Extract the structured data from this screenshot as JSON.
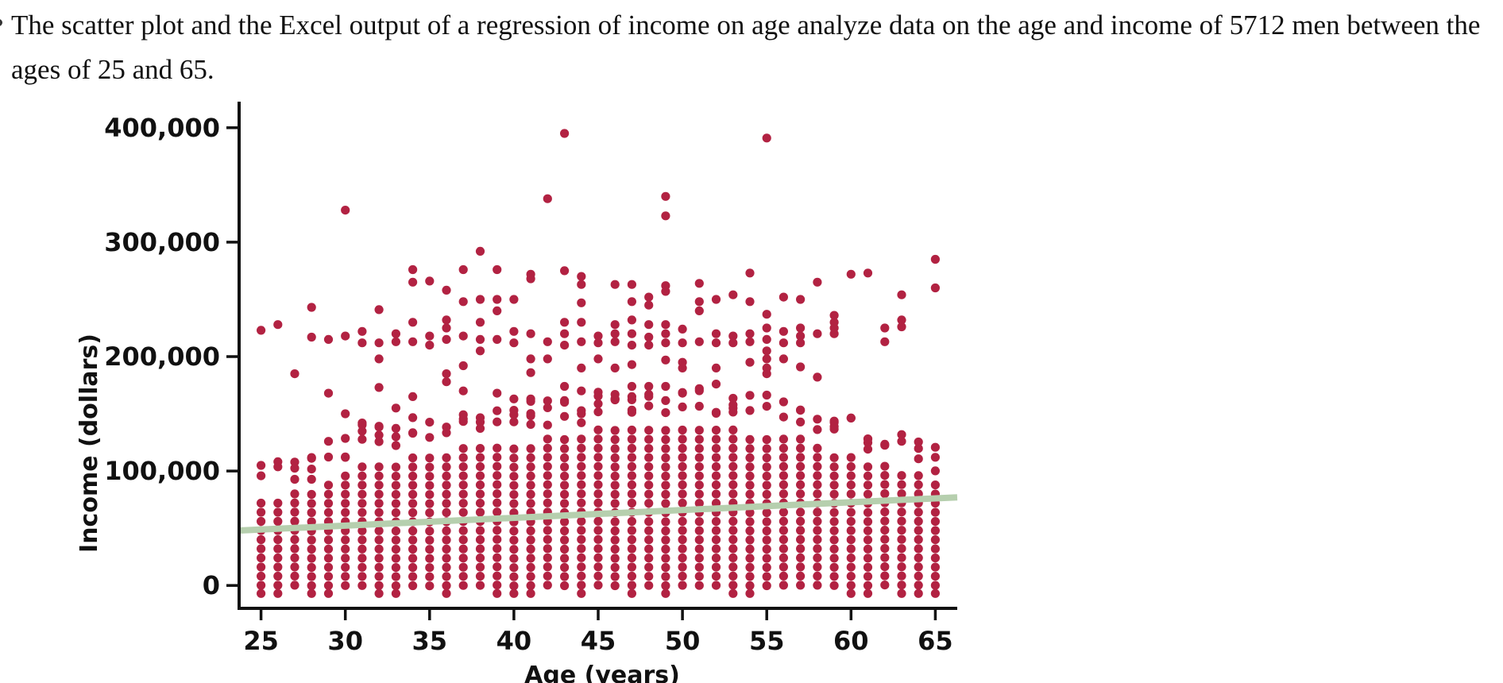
{
  "question": {
    "text": "The scatter plot and the Excel output of a regression of income on age analyze data on the age and income of 5712 men between the ages of 25 and 65."
  },
  "colors": {
    "points": "#b22242",
    "regression_line": "#b6cfae",
    "axes": "#111111"
  },
  "chart_data": {
    "type": "scatter",
    "title": "",
    "xlabel": "Age (years)",
    "ylabel": "Income (dollars)",
    "xlim": [
      23.7,
      66.3
    ],
    "ylim": [
      -20000,
      420000
    ],
    "x_ticks": [
      25,
      30,
      35,
      40,
      45,
      50,
      55,
      60,
      65
    ],
    "y_ticks": [
      0,
      100000,
      200000,
      300000,
      400000
    ],
    "x_tick_labels": [
      "25",
      "30",
      "35",
      "40",
      "45",
      "50",
      "55",
      "60",
      "65"
    ],
    "y_tick_labels": [
      "0",
      "100,000",
      "200,000",
      "300,000",
      "400,000"
    ],
    "grid": false,
    "legend": "none",
    "dense_band": {
      "description_ages": "every integer age 25-65",
      "upper_by_age": [
        72000,
        78000,
        80000,
        82000,
        95000,
        100000,
        108000,
        110000,
        112000,
        115000,
        118000,
        120000,
        120000,
        122000,
        122000,
        125000,
        128000,
        130000,
        132000,
        134000,
        136000,
        138000,
        140000,
        140000,
        140000,
        140000,
        140000,
        140000,
        138000,
        136000,
        134000,
        132000,
        128000,
        125000,
        120000,
        115000,
        110000,
        105000,
        100000,
        95000,
        90000
      ]
    },
    "outliers": [
      {
        "x": 25,
        "y": 223000
      },
      {
        "x": 26,
        "y": 228000
      },
      {
        "x": 27,
        "y": 185000
      },
      {
        "x": 28,
        "y": 243000
      },
      {
        "x": 28,
        "y": 217000
      },
      {
        "x": 29,
        "y": 168000
      },
      {
        "x": 29,
        "y": 215000
      },
      {
        "x": 30,
        "y": 328000
      },
      {
        "x": 30,
        "y": 218000
      },
      {
        "x": 30,
        "y": 150000
      },
      {
        "x": 31,
        "y": 222000
      },
      {
        "x": 31,
        "y": 212000
      },
      {
        "x": 31,
        "y": 142000
      },
      {
        "x": 32,
        "y": 241000
      },
      {
        "x": 32,
        "y": 212000
      },
      {
        "x": 32,
        "y": 198000
      },
      {
        "x": 32,
        "y": 173000
      },
      {
        "x": 33,
        "y": 220000
      },
      {
        "x": 33,
        "y": 213000
      },
      {
        "x": 33,
        "y": 155000
      },
      {
        "x": 34,
        "y": 276000
      },
      {
        "x": 34,
        "y": 265000
      },
      {
        "x": 34,
        "y": 230000
      },
      {
        "x": 34,
        "y": 213000
      },
      {
        "x": 34,
        "y": 165000
      },
      {
        "x": 35,
        "y": 266000
      },
      {
        "x": 35,
        "y": 218000
      },
      {
        "x": 35,
        "y": 210000
      },
      {
        "x": 36,
        "y": 258000
      },
      {
        "x": 36,
        "y": 232000
      },
      {
        "x": 36,
        "y": 225000
      },
      {
        "x": 36,
        "y": 215000
      },
      {
        "x": 36,
        "y": 185000
      },
      {
        "x": 36,
        "y": 178000
      },
      {
        "x": 37,
        "y": 276000
      },
      {
        "x": 37,
        "y": 248000
      },
      {
        "x": 37,
        "y": 218000
      },
      {
        "x": 37,
        "y": 192000
      },
      {
        "x": 37,
        "y": 170000
      },
      {
        "x": 38,
        "y": 292000
      },
      {
        "x": 38,
        "y": 250000
      },
      {
        "x": 38,
        "y": 230000
      },
      {
        "x": 38,
        "y": 215000
      },
      {
        "x": 38,
        "y": 205000
      },
      {
        "x": 39,
        "y": 276000
      },
      {
        "x": 39,
        "y": 250000
      },
      {
        "x": 39,
        "y": 240000
      },
      {
        "x": 39,
        "y": 215000
      },
      {
        "x": 39,
        "y": 168000
      },
      {
        "x": 40,
        "y": 250000
      },
      {
        "x": 40,
        "y": 222000
      },
      {
        "x": 40,
        "y": 212000
      },
      {
        "x": 40,
        "y": 163000
      },
      {
        "x": 41,
        "y": 272000
      },
      {
        "x": 41,
        "y": 268000
      },
      {
        "x": 41,
        "y": 220000
      },
      {
        "x": 41,
        "y": 198000
      },
      {
        "x": 41,
        "y": 186000
      },
      {
        "x": 41,
        "y": 163000
      },
      {
        "x": 42,
        "y": 338000
      },
      {
        "x": 42,
        "y": 213000
      },
      {
        "x": 42,
        "y": 198000
      },
      {
        "x": 43,
        "y": 395000
      },
      {
        "x": 43,
        "y": 275000
      },
      {
        "x": 43,
        "y": 230000
      },
      {
        "x": 43,
        "y": 220000
      },
      {
        "x": 43,
        "y": 210000
      },
      {
        "x": 43,
        "y": 174000
      },
      {
        "x": 44,
        "y": 270000
      },
      {
        "x": 44,
        "y": 263000
      },
      {
        "x": 44,
        "y": 247000
      },
      {
        "x": 44,
        "y": 230000
      },
      {
        "x": 44,
        "y": 213000
      },
      {
        "x": 44,
        "y": 190000
      },
      {
        "x": 44,
        "y": 170000
      },
      {
        "x": 45,
        "y": 218000
      },
      {
        "x": 45,
        "y": 212000
      },
      {
        "x": 45,
        "y": 198000
      },
      {
        "x": 46,
        "y": 263000
      },
      {
        "x": 46,
        "y": 228000
      },
      {
        "x": 46,
        "y": 220000
      },
      {
        "x": 46,
        "y": 213000
      },
      {
        "x": 46,
        "y": 190000
      },
      {
        "x": 46,
        "y": 167000
      },
      {
        "x": 47,
        "y": 263000
      },
      {
        "x": 47,
        "y": 248000
      },
      {
        "x": 47,
        "y": 232000
      },
      {
        "x": 47,
        "y": 220000
      },
      {
        "x": 47,
        "y": 210000
      },
      {
        "x": 47,
        "y": 193000
      },
      {
        "x": 47,
        "y": 174000
      },
      {
        "x": 48,
        "y": 252000
      },
      {
        "x": 48,
        "y": 245000
      },
      {
        "x": 48,
        "y": 228000
      },
      {
        "x": 48,
        "y": 217000
      },
      {
        "x": 48,
        "y": 210000
      },
      {
        "x": 48,
        "y": 174000
      },
      {
        "x": 48,
        "y": 167000
      },
      {
        "x": 49,
        "y": 340000
      },
      {
        "x": 49,
        "y": 323000
      },
      {
        "x": 49,
        "y": 262000
      },
      {
        "x": 49,
        "y": 257000
      },
      {
        "x": 49,
        "y": 228000
      },
      {
        "x": 49,
        "y": 220000
      },
      {
        "x": 49,
        "y": 212000
      },
      {
        "x": 49,
        "y": 197000
      },
      {
        "x": 49,
        "y": 174000
      },
      {
        "x": 50,
        "y": 224000
      },
      {
        "x": 50,
        "y": 212000
      },
      {
        "x": 50,
        "y": 195000
      },
      {
        "x": 50,
        "y": 190000
      },
      {
        "x": 51,
        "y": 264000
      },
      {
        "x": 51,
        "y": 248000
      },
      {
        "x": 51,
        "y": 240000
      },
      {
        "x": 51,
        "y": 213000
      },
      {
        "x": 51,
        "y": 172000
      },
      {
        "x": 52,
        "y": 250000
      },
      {
        "x": 52,
        "y": 220000
      },
      {
        "x": 52,
        "y": 212000
      },
      {
        "x": 52,
        "y": 190000
      },
      {
        "x": 52,
        "y": 176000
      },
      {
        "x": 53,
        "y": 254000
      },
      {
        "x": 53,
        "y": 218000
      },
      {
        "x": 53,
        "y": 212000
      },
      {
        "x": 54,
        "y": 273000
      },
      {
        "x": 54,
        "y": 248000
      },
      {
        "x": 54,
        "y": 220000
      },
      {
        "x": 54,
        "y": 213000
      },
      {
        "x": 54,
        "y": 195000
      },
      {
        "x": 55,
        "y": 391000
      },
      {
        "x": 55,
        "y": 237000
      },
      {
        "x": 55,
        "y": 225000
      },
      {
        "x": 55,
        "y": 215000
      },
      {
        "x": 55,
        "y": 205000
      },
      {
        "x": 55,
        "y": 198000
      },
      {
        "x": 55,
        "y": 190000
      },
      {
        "x": 55,
        "y": 185000
      },
      {
        "x": 56,
        "y": 252000
      },
      {
        "x": 56,
        "y": 222000
      },
      {
        "x": 56,
        "y": 212000
      },
      {
        "x": 56,
        "y": 198000
      },
      {
        "x": 57,
        "y": 250000
      },
      {
        "x": 57,
        "y": 225000
      },
      {
        "x": 57,
        "y": 218000
      },
      {
        "x": 57,
        "y": 212000
      },
      {
        "x": 57,
        "y": 191000
      },
      {
        "x": 58,
        "y": 265000
      },
      {
        "x": 58,
        "y": 220000
      },
      {
        "x": 58,
        "y": 182000
      },
      {
        "x": 59,
        "y": 236000
      },
      {
        "x": 59,
        "y": 230000
      },
      {
        "x": 59,
        "y": 225000
      },
      {
        "x": 59,
        "y": 220000
      },
      {
        "x": 60,
        "y": 272000
      },
      {
        "x": 61,
        "y": 273000
      },
      {
        "x": 62,
        "y": 225000
      },
      {
        "x": 62,
        "y": 213000
      },
      {
        "x": 63,
        "y": 254000
      },
      {
        "x": 63,
        "y": 232000
      },
      {
        "x": 63,
        "y": 226000
      },
      {
        "x": 65,
        "y": 285000
      },
      {
        "x": 65,
        "y": 260000
      }
    ],
    "regression_line": {
      "x": [
        23.7,
        66.3
      ],
      "y": [
        48000,
        77000
      ]
    }
  }
}
